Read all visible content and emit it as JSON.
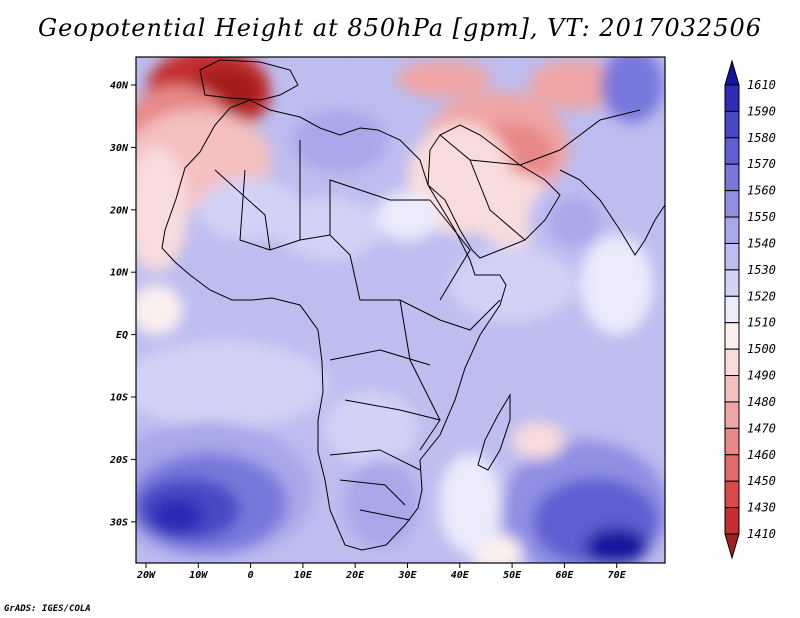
{
  "title": "Geopotential Height at 850hPa [gpm], VT: 2017032506",
  "credit": "GrADS: IGES/COLA",
  "map": {
    "lon_labels": [
      "20W",
      "10W",
      "0",
      "10E",
      "20E",
      "30E",
      "40E",
      "50E",
      "60E",
      "70E"
    ],
    "lat_labels": [
      "40N",
      "30N",
      "20N",
      "10N",
      "EQ",
      "10S",
      "20S",
      "30S"
    ]
  },
  "colorbar": {
    "levels": [
      "1410",
      "1430",
      "1450",
      "1460",
      "1470",
      "1480",
      "1490",
      "1500",
      "1510",
      "1520",
      "1530",
      "1540",
      "1550",
      "1560",
      "1570",
      "1580",
      "1590",
      "1610"
    ],
    "colors": [
      "#a51e1e",
      "#c42e2e",
      "#db4848",
      "#e06a6a",
      "#e88888",
      "#efa5a5",
      "#f4c0c0",
      "#f9dcdc",
      "#fdf0ef",
      "#ecebfc",
      "#d2d2f6",
      "#bdbdf0",
      "#a7a7ea",
      "#8f8fe3",
      "#7878dc",
      "#5f5fd2",
      "#4848c6",
      "#2c2cb6",
      "#14149e"
    ]
  },
  "field": {
    "blobs": [
      {
        "lon": -8,
        "lat": 39,
        "rlon": 12,
        "rlat": 7,
        "color": "#c42e2e"
      },
      {
        "lon": -5,
        "lat": 39,
        "rlon": 7,
        "rlat": 4,
        "color": "#a51e1e"
      },
      {
        "lon": -14,
        "lat": 33,
        "rlon": 10,
        "rlat": 7,
        "color": "#e88888"
      },
      {
        "lon": -10,
        "lat": 28,
        "rlon": 14,
        "rlat": 8,
        "color": "#f4c0c0"
      },
      {
        "lon": -18,
        "lat": 20,
        "rlon": 6,
        "rlat": 10,
        "color": "#f9dcdc"
      },
      {
        "lon": 47,
        "lat": 30,
        "rlon": 14,
        "rlat": 9,
        "color": "#efa5a5"
      },
      {
        "lon": 50,
        "lat": 29,
        "rlon": 8,
        "rlat": 5,
        "color": "#e88888"
      },
      {
        "lon": 40,
        "lat": 25,
        "rlon": 10,
        "rlat": 9,
        "color": "#f9dcdc"
      },
      {
        "lon": 50,
        "lat": 20,
        "rlon": 8,
        "rlat": 6,
        "color": "#f9dcdc"
      },
      {
        "lon": 37,
        "lat": 41,
        "rlon": 9,
        "rlat": 3,
        "color": "#efa5a5"
      },
      {
        "lon": 62,
        "lat": 40,
        "rlon": 9,
        "rlat": 4,
        "color": "#efa5a5"
      },
      {
        "lon": 17,
        "lat": 31,
        "rlon": 9,
        "rlat": 5,
        "color": "#a7a7ea"
      },
      {
        "lon": 12,
        "lat": 40,
        "rlon": 6,
        "rlat": 3,
        "color": "#bdbdf0"
      },
      {
        "lon": 0,
        "lat": 20,
        "rlon": 10,
        "rlat": 5,
        "color": "#d2d2f6"
      },
      {
        "lon": 15,
        "lat": 17,
        "rlon": 10,
        "rlat": 5,
        "color": "#d2d2f6"
      },
      {
        "lon": 30,
        "lat": 19,
        "rlon": 6,
        "rlat": 4,
        "color": "#ecebfc"
      },
      {
        "lon": 62,
        "lat": 18,
        "rlon": 9,
        "rlat": 7,
        "color": "#bdbdf0"
      },
      {
        "lon": 62,
        "lat": 18,
        "rlon": 5,
        "rlat": 4,
        "color": "#a7a7ea"
      },
      {
        "lon": 73,
        "lat": 40,
        "rlon": 6,
        "rlat": 6,
        "color": "#7878dc"
      },
      {
        "lon": 50,
        "lat": 8,
        "rlon": 12,
        "rlat": 6,
        "color": "#d2d2f6"
      },
      {
        "lon": 23,
        "lat": 3,
        "rlon": 9,
        "rlat": 6,
        "color": "#bdbdf0"
      },
      {
        "lon": 33,
        "lat": -5,
        "rlon": 9,
        "rlat": 8,
        "color": "#bdbdf0"
      },
      {
        "lon": 23,
        "lat": -15,
        "rlon": 9,
        "rlat": 6,
        "color": "#d2d2f6"
      },
      {
        "lon": -5,
        "lat": -8,
        "rlon": 20,
        "rlat": 7,
        "color": "#d2d2f6"
      },
      {
        "lon": -8,
        "lat": -25,
        "rlon": 20,
        "rlat": 11,
        "color": "#a7a7ea"
      },
      {
        "lon": -8,
        "lat": -27,
        "rlon": 15,
        "rlat": 8,
        "color": "#7878dc"
      },
      {
        "lon": -12,
        "lat": -28,
        "rlon": 10,
        "rlat": 5,
        "color": "#4848c6"
      },
      {
        "lon": -14,
        "lat": -29,
        "rlon": 5,
        "rlat": 3,
        "color": "#2c2cb6"
      },
      {
        "lon": 64,
        "lat": -28,
        "rlon": 16,
        "rlat": 11,
        "color": "#8f8fe3"
      },
      {
        "lon": 66,
        "lat": -30,
        "rlon": 12,
        "rlat": 7,
        "color": "#5f5fd2"
      },
      {
        "lon": 70,
        "lat": -34,
        "rlon": 6,
        "rlat": 3,
        "color": "#14149e"
      },
      {
        "lon": 55,
        "lat": -17,
        "rlon": 5,
        "rlat": 3,
        "color": "#f9dcdc"
      },
      {
        "lon": 47,
        "lat": -35,
        "rlon": 5,
        "rlat": 3,
        "color": "#fdf0ef"
      },
      {
        "lon": 42,
        "lat": -27,
        "rlon": 6,
        "rlat": 8,
        "color": "#ecebfc"
      },
      {
        "lon": 25,
        "lat": -27,
        "rlon": 7,
        "rlat": 7,
        "color": "#a7a7ea"
      },
      {
        "lon": -18,
        "lat": 4,
        "rlon": 5,
        "rlat": 4,
        "color": "#fdf0ef"
      },
      {
        "lon": 70,
        "lat": 8,
        "rlon": 7,
        "rlat": 8,
        "color": "#ecebfc"
      }
    ]
  }
}
